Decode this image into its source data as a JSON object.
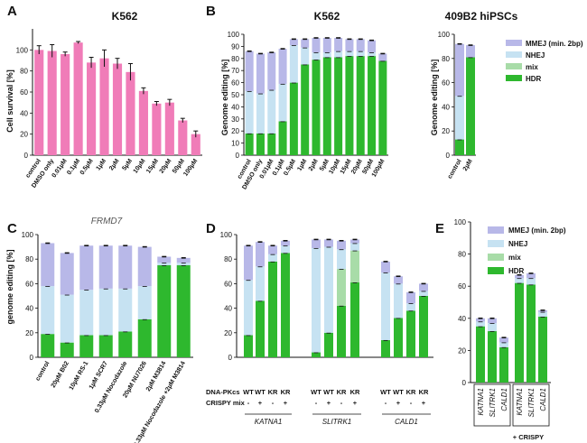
{
  "colors": {
    "survival": "#f07cb8",
    "mmej": "#b8b8e8",
    "nhej": "#c6e2f2",
    "mix": "#a8dca8",
    "hdr": "#2eb82e"
  },
  "chart_data": [
    {
      "panel": "A",
      "type": "bar",
      "title": "K562",
      "ylabel": "Cell survival [%]",
      "ylim": [
        0,
        120
      ],
      "yticks": [
        0,
        20,
        40,
        60,
        80,
        100
      ],
      "categories": [
        "control",
        "DMSO only",
        "0.01µM",
        "0.1µM",
        "0.5µM",
        "1µM",
        "2µM",
        "5µM",
        "10µM",
        "15µM",
        "20µM",
        "50µM",
        "100µM"
      ],
      "values": [
        100,
        99,
        96,
        107,
        88,
        92,
        87,
        79,
        61,
        49,
        50,
        33,
        20
      ],
      "errors": [
        4,
        6,
        2,
        1,
        5,
        8,
        5,
        8,
        3,
        2,
        3,
        2,
        3
      ]
    },
    {
      "panel": "B",
      "type": "bar",
      "stacked": true,
      "title": "K562",
      "ylabel": "Genome editing [%]",
      "ylim": [
        0,
        100
      ],
      "yticks": [
        0,
        10,
        20,
        30,
        40,
        50,
        60,
        70,
        80,
        90,
        100
      ],
      "categories": [
        "control",
        "DMSO only",
        "0.01µM",
        "0.1µM",
        "0.5µM",
        "1µM",
        "2µM",
        "5µM",
        "10µM",
        "15µM",
        "20µM",
        "50µM",
        "100µM"
      ],
      "series": [
        {
          "name": "HDR",
          "values": [
            18,
            18,
            18,
            28,
            60,
            75,
            79,
            81,
            81,
            82,
            82,
            82,
            78
          ]
        },
        {
          "name": "NHEJ",
          "values": [
            35,
            33,
            36,
            31,
            31,
            14,
            6,
            4,
            5,
            4,
            4,
            3,
            0
          ]
        },
        {
          "name": "MMEJ (min. 2bp)",
          "values": [
            33,
            33,
            31,
            29,
            5,
            7,
            12,
            12,
            11,
            10,
            10,
            10,
            6
          ]
        }
      ]
    },
    {
      "panel": "B2",
      "type": "bar",
      "stacked": true,
      "title": "409B2 hiPSCs",
      "ylabel": "Genome editing [%]",
      "ylim": [
        0,
        100
      ],
      "yticks": [
        0,
        20,
        40,
        60,
        80,
        100
      ],
      "categories": [
        "control",
        "2µM"
      ],
      "series": [
        {
          "name": "HDR",
          "values": [
            13,
            81
          ]
        },
        {
          "name": "NHEJ",
          "values": [
            36,
            0
          ]
        },
        {
          "name": "MMEJ (min. 2bp)",
          "values": [
            43,
            10
          ]
        }
      ],
      "legend": [
        "MMEJ (min. 2bp)",
        "NHEJ",
        "mix",
        "HDR"
      ]
    },
    {
      "panel": "C",
      "type": "bar",
      "stacked": true,
      "title": "FRMD7",
      "ylabel": "genome editing [%]",
      "ylim": [
        0,
        100
      ],
      "yticks": [
        0,
        20,
        40,
        60,
        80,
        100
      ],
      "categories": [
        "control",
        "20µM B02",
        "10µM RS-1",
        "1µM SCR7",
        "0.33µM Nocodazole",
        "20µM NU7026",
        "2µM M3814",
        "0.33µM Nocodazole +2µM M3814"
      ],
      "series": [
        {
          "name": "HDR",
          "values": [
            19,
            12,
            18,
            18,
            21,
            31,
            75,
            75
          ]
        },
        {
          "name": "NHEJ",
          "values": [
            39,
            39,
            37,
            38,
            35,
            27,
            2,
            2
          ]
        },
        {
          "name": "MMEJ (min. 2bp)",
          "values": [
            35,
            34,
            36,
            35,
            35,
            32,
            5,
            4
          ]
        }
      ]
    },
    {
      "panel": "D",
      "type": "bar",
      "stacked": true,
      "ylabel": "Genome editing [%]",
      "ylim": [
        0,
        100
      ],
      "yticks": [
        0,
        20,
        40,
        60,
        80,
        100
      ],
      "groups": [
        "KATNA1",
        "SLITRK1",
        "CALD1"
      ],
      "rows": {
        "DNA-PKcs": [
          "WT",
          "WT",
          "KR",
          "KR",
          "WT",
          "WT",
          "KR",
          "KR",
          "WT",
          "WT",
          "KR",
          "KR"
        ],
        "CRISPY mix": [
          "-",
          "+",
          "-",
          "+",
          "-",
          "+",
          "-",
          "+",
          "-",
          "+",
          "-",
          "+"
        ]
      },
      "row_labels": [
        "DNA-PKcs",
        "CRISPY mix"
      ],
      "series": [
        {
          "name": "HDR",
          "values": [
            18,
            46,
            78,
            85,
            4,
            20,
            42,
            61,
            14,
            32,
            38,
            50
          ]
        },
        {
          "name": "mix",
          "values": [
            0,
            0,
            0,
            0,
            0,
            0,
            30,
            26,
            0,
            0,
            0,
            0
          ]
        },
        {
          "name": "NHEJ",
          "values": [
            45,
            28,
            6,
            6,
            85,
            70,
            16,
            6,
            55,
            28,
            6,
            4
          ]
        },
        {
          "name": "MMEJ (min. 2bp)",
          "values": [
            28,
            20,
            7,
            4,
            7,
            6,
            7,
            3,
            9,
            6,
            9,
            6
          ]
        }
      ]
    },
    {
      "panel": "E",
      "type": "bar",
      "stacked": true,
      "ylabel": "Genome editing [%]",
      "ylim": [
        0,
        100
      ],
      "yticks": [
        0,
        20,
        40,
        60,
        80,
        100
      ],
      "categories": [
        "KATNA1",
        "SLITRK1",
        "CALD1",
        "KATNA1",
        "SLITRK1",
        "CALD1"
      ],
      "group_label": "+ CRISPY",
      "series": [
        {
          "name": "HDR",
          "values": [
            35,
            32,
            22,
            62,
            61,
            41
          ]
        },
        {
          "name": "mix",
          "values": [
            0,
            0,
            0,
            0,
            0,
            0
          ]
        },
        {
          "name": "NHEJ",
          "values": [
            3,
            5,
            3,
            3,
            4,
            3
          ]
        },
        {
          "name": "MMEJ (min. 2bp)",
          "values": [
            2,
            3,
            3,
            2,
            3,
            1
          ]
        }
      ],
      "legend": [
        "MMEJ (min. 2bp)",
        "NHEJ",
        "mix",
        "HDR"
      ]
    }
  ]
}
